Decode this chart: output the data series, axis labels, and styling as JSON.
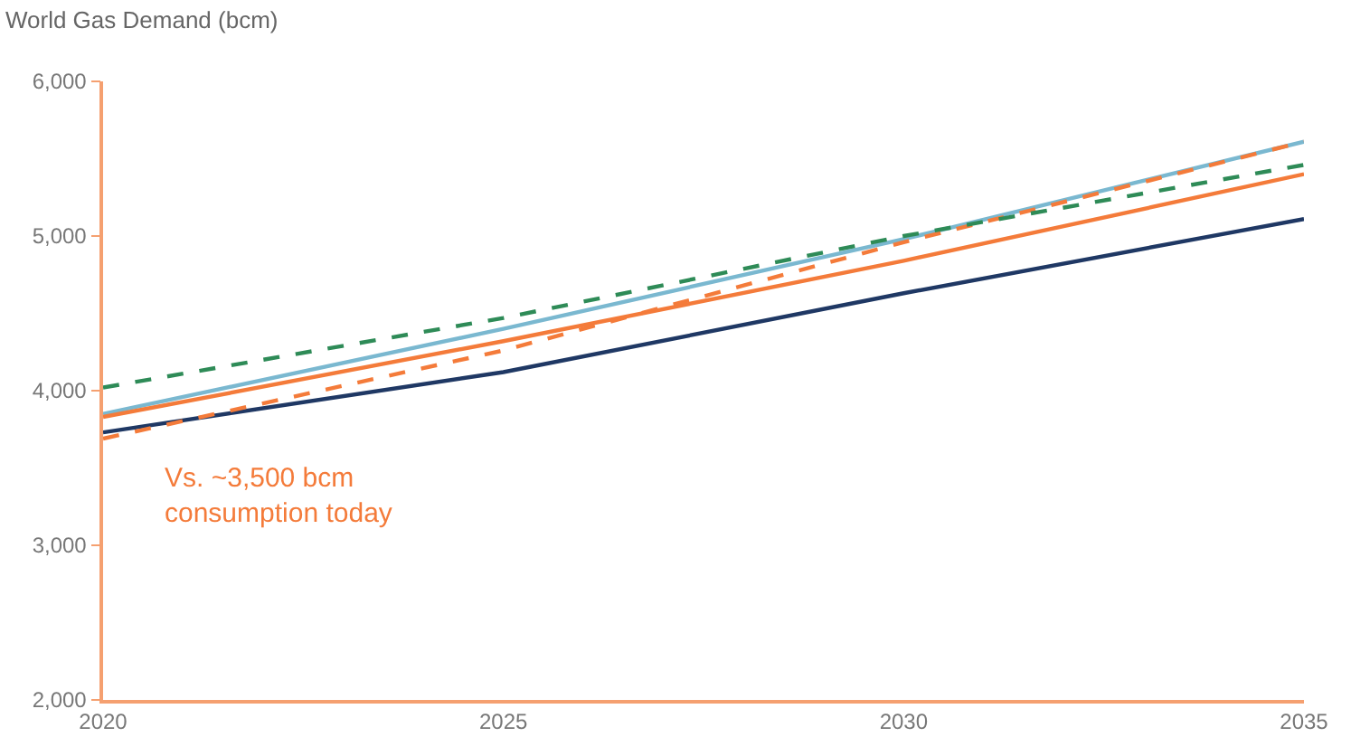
{
  "chart_data": {
    "type": "line",
    "title": "World Gas Demand (bcm)",
    "x": [
      2020,
      2025,
      2030,
      2035
    ],
    "series": [
      {
        "color": "#1f3864",
        "line_style": "solid",
        "values": [
          3730,
          4120,
          4630,
          5110
        ]
      },
      {
        "color": "#7ab8d0",
        "line_style": "solid",
        "values": [
          3850,
          4400,
          4980,
          5610
        ]
      },
      {
        "color": "#f47b3a",
        "line_style": "solid",
        "values": [
          3830,
          4320,
          4840,
          5400
        ]
      },
      {
        "color": "#f47b3a",
        "line_style": "dashed",
        "values": [
          3690,
          4260,
          4960,
          5610
        ]
      },
      {
        "color": "#2e8b57",
        "line_style": "dashed",
        "values": [
          4020,
          4470,
          5000,
          5460
        ]
      }
    ],
    "xlim": [
      2020,
      2035
    ],
    "xticks": [
      2020,
      2025,
      2030,
      2035
    ],
    "ylim": [
      2000,
      6000
    ],
    "yticks": [
      {
        "value": 2000,
        "label": "2,000"
      },
      {
        "value": 3000,
        "label": "3,000"
      },
      {
        "value": 4000,
        "label": "4,000"
      },
      {
        "value": 5000,
        "label": "5,000"
      },
      {
        "value": 6000,
        "label": "6,000"
      }
    ],
    "marker": "none",
    "annotations": [
      "Vs. ~3,500 bcm\nconsumption today"
    ]
  }
}
